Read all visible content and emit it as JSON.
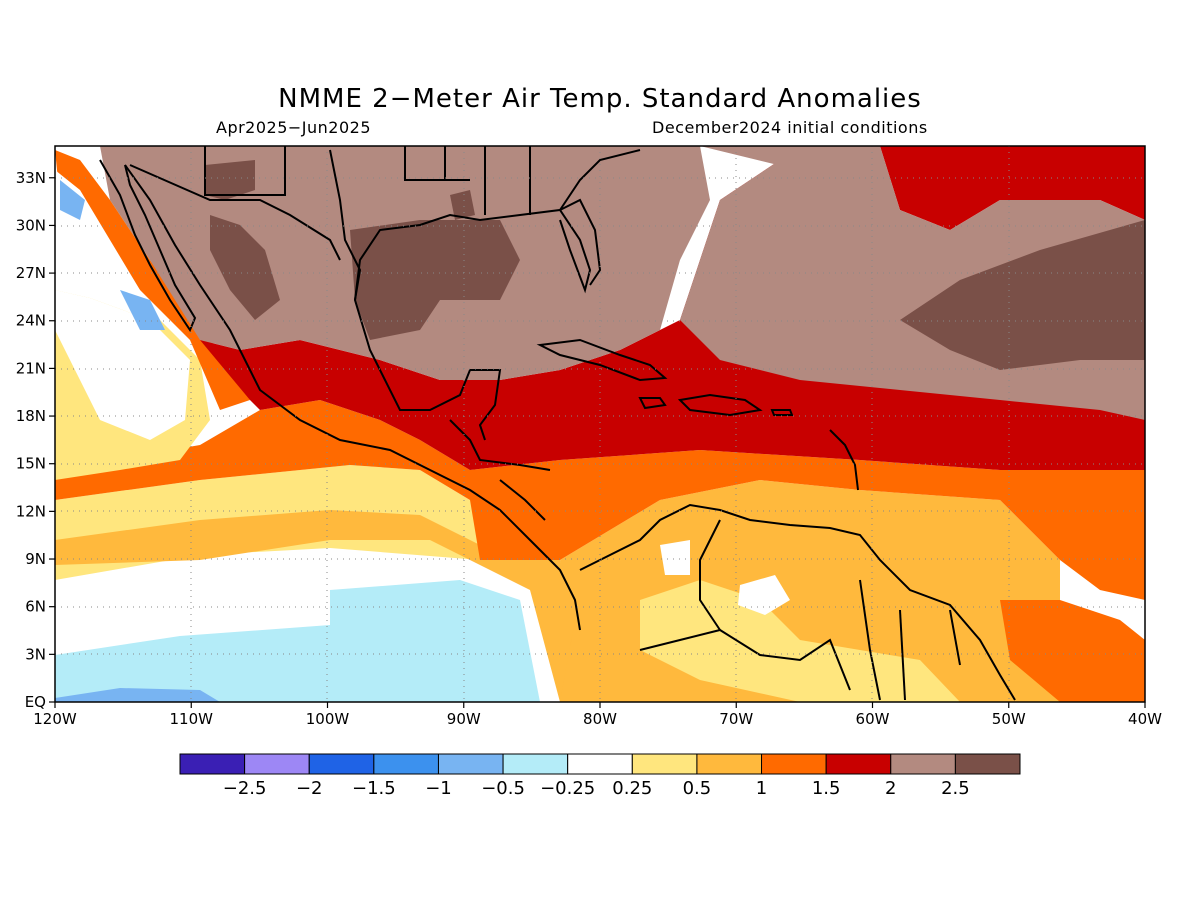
{
  "title": "NMME 2−Meter Air Temp. Standard Anomalies",
  "period": "Apr2025−Jun2025",
  "init": "December2024 initial conditions",
  "map": {
    "lon_range": [
      -120,
      -40
    ],
    "lat_range": [
      0,
      35
    ],
    "lon_ticks": [
      {
        "value": -120,
        "label": "120W"
      },
      {
        "value": -110,
        "label": "110W"
      },
      {
        "value": -100,
        "label": "100W"
      },
      {
        "value": -90,
        "label": "90W"
      },
      {
        "value": -80,
        "label": "80W"
      },
      {
        "value": -70,
        "label": "70W"
      },
      {
        "value": -60,
        "label": "60W"
      },
      {
        "value": -50,
        "label": "50W"
      },
      {
        "value": -40,
        "label": "40W"
      }
    ],
    "lat_ticks": [
      {
        "value": 0,
        "label": "EQ"
      },
      {
        "value": 3,
        "label": "3N"
      },
      {
        "value": 6,
        "label": "6N"
      },
      {
        "value": 9,
        "label": "9N"
      },
      {
        "value": 12,
        "label": "12N"
      },
      {
        "value": 15,
        "label": "15N"
      },
      {
        "value": 18,
        "label": "18N"
      },
      {
        "value": 21,
        "label": "21N"
      },
      {
        "value": 24,
        "label": "24N"
      },
      {
        "value": 27,
        "label": "27N"
      },
      {
        "value": 30,
        "label": "30N"
      },
      {
        "value": 33,
        "label": "33N"
      }
    ],
    "grid": "dotted"
  },
  "colorbar": {
    "colors": [
      "#3a1fb4",
      "#9d87f5",
      "#1f63e6",
      "#3c91ee",
      "#78b4f2",
      "#b4ecf8",
      "#ffffff",
      "#ffe67e",
      "#ffb93d",
      "#ff6a00",
      "#c80000",
      "#b38a80",
      "#7a5048"
    ],
    "labels": [
      "−2.5",
      "−2",
      "−1.5",
      "−1",
      "−0.5",
      "−0.25",
      "0.25",
      "0.5",
      "1",
      "1.5",
      "2",
      "2.5"
    ]
  }
}
